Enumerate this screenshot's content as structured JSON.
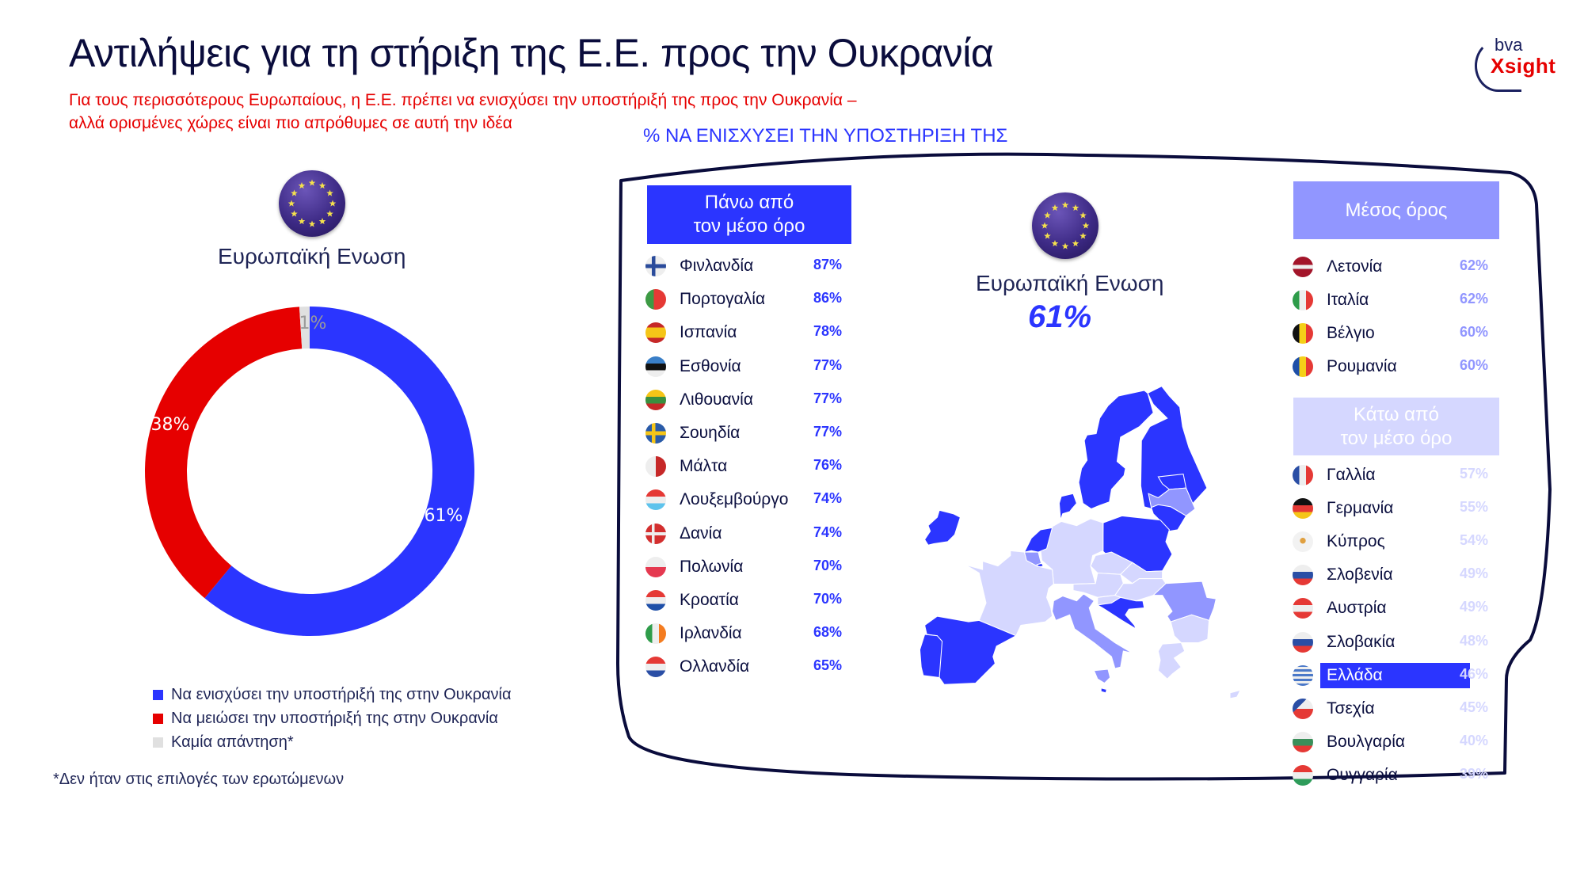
{
  "header": {
    "title": "Αντιλήψεις για τη στήριξη της Ε.Ε. προς την Ουκρανία",
    "subtitle_line1": "Για τους περισσότερους Ευρωπαίους, η Ε.Ε. πρέπει να ενισχύσει την υποστήριξή της προς την Ουκρανία –",
    "subtitle_line2": "αλλά ορισμένες χώρες είναι πιο απρόθυμες σε αυτή την ιδέα",
    "logo_top": "bva",
    "logo_bottom": "Xsight"
  },
  "left_panel": {
    "flag_icon": "eu-flag-icon",
    "label": "Ευρωπαϊκή Ενωση",
    "legend": [
      {
        "label": "Να ενισχύσει την υποστήριξή της στην Ουκρανία",
        "color": "#2b35ff"
      },
      {
        "label": "Να μειώσει την υποστήριξή της στην Ουκρανία",
        "color": "#e60000"
      },
      {
        "label": "Καμία απάντηση*",
        "color": "#e0e0e0"
      }
    ],
    "footnote": "*Δεν ήταν στις επιλογές των ερωτώμενων"
  },
  "chart_data": {
    "type": "pie",
    "subtype": "donut",
    "title": "Ευρωπαϊκή Ενωση",
    "categories": [
      "Να ενισχύσει την υποστήριξή της στην Ουκρανία",
      "Να μειώσει την υποστήριξή της στην Ουκρανία",
      "Καμία απάντηση*"
    ],
    "values": [
      61,
      38,
      1
    ],
    "labels": [
      "61%",
      "38%",
      "1%"
    ],
    "colors": [
      "#2b35ff",
      "#e60000",
      "#e0e0e0"
    ],
    "legend_position": "bottom",
    "country_ranking": {
      "title": "% ΝΑ ΕΝΙΣΧΥΣΕΙ ΤΗΝ ΥΠΟΣΤΗΡΙΞΗ ΤΗΣ",
      "eu_average": 61,
      "above_average": [
        {
          "country": "Φινλανδία",
          "value": 87
        },
        {
          "country": "Πορτογαλία",
          "value": 86
        },
        {
          "country": "Ισπανία",
          "value": 78
        },
        {
          "country": "Εσθονία",
          "value": 77
        },
        {
          "country": "Λιθουανία",
          "value": 77
        },
        {
          "country": "Σουηδία",
          "value": 77
        },
        {
          "country": "Μάλτα",
          "value": 76
        },
        {
          "country": "Λουξεμβούργο",
          "value": 74
        },
        {
          "country": "Δανία",
          "value": 74
        },
        {
          "country": "Πολωνία",
          "value": 70
        },
        {
          "country": "Κροατία",
          "value": 70
        },
        {
          "country": "Ιρλανδία",
          "value": 68
        },
        {
          "country": "Ολλανδία",
          "value": 65
        }
      ],
      "average": [
        {
          "country": "Λετονία",
          "value": 62
        },
        {
          "country": "Ιταλία",
          "value": 62
        },
        {
          "country": "Βέλγιο",
          "value": 60
        },
        {
          "country": "Ρουμανία",
          "value": 60
        }
      ],
      "below_average": [
        {
          "country": "Γαλλία",
          "value": 57
        },
        {
          "country": "Γερμανία",
          "value": 55
        },
        {
          "country": "Κύπρος",
          "value": 54
        },
        {
          "country": "Σλοβενία",
          "value": 49
        },
        {
          "country": "Αυστρία",
          "value": 49
        },
        {
          "country": "Σλοβακία",
          "value": 48
        },
        {
          "country": "Ελλάδα",
          "value": 46
        },
        {
          "country": "Τσεχία",
          "value": 45
        },
        {
          "country": "Βουλγαρία",
          "value": 40
        },
        {
          "country": "Ουγγαρία",
          "value": 39
        }
      ]
    }
  },
  "right_panel": {
    "header": "%  ΝΑ ΕΝΙΣΧΥΣΕΙ ΤΗΝ ΥΠΟΣΤΗΡΙΞΗ ΤΗΣ",
    "center_label": "Ευρωπαϊκή Ενωση",
    "center_value": "61%",
    "colors": {
      "above": "#2b35ff",
      "average": "#9196ff",
      "below": "#d5d7ff",
      "highlight": "#2b35ff"
    },
    "above": {
      "title_line1": "Πάνω από",
      "title_line2": "τον μέσο όρο",
      "rows": [
        {
          "name": "Φινλανδία",
          "value": "87%",
          "flag": "finland-flag-icon"
        },
        {
          "name": "Πορτογαλία",
          "value": "86%",
          "flag": "portugal-flag-icon"
        },
        {
          "name": "Ισπανία",
          "value": "78%",
          "flag": "spain-flag-icon"
        },
        {
          "name": "Εσθονία",
          "value": "77%",
          "flag": "estonia-flag-icon"
        },
        {
          "name": "Λιθουανία",
          "value": "77%",
          "flag": "lithuania-flag-icon"
        },
        {
          "name": "Σουηδία",
          "value": "77%",
          "flag": "sweden-flag-icon"
        },
        {
          "name": "Μάλτα",
          "value": "76%",
          "flag": "malta-flag-icon"
        },
        {
          "name": "Λουξεμβούργο",
          "value": "74%",
          "flag": "luxembourg-flag-icon"
        },
        {
          "name": "Δανία",
          "value": "74%",
          "flag": "denmark-flag-icon"
        },
        {
          "name": "Πολωνία",
          "value": "70%",
          "flag": "poland-flag-icon"
        },
        {
          "name": "Κροατία",
          "value": "70%",
          "flag": "croatia-flag-icon"
        },
        {
          "name": "Ιρλανδία",
          "value": "68%",
          "flag": "ireland-flag-icon"
        },
        {
          "name": "Ολλανδία",
          "value": "65%",
          "flag": "netherlands-flag-icon"
        }
      ]
    },
    "average": {
      "title": "Μέσος όρος",
      "rows": [
        {
          "name": "Λετονία",
          "value": "62%",
          "flag": "latvia-flag-icon"
        },
        {
          "name": "Ιταλία",
          "value": "62%",
          "flag": "italy-flag-icon"
        },
        {
          "name": "Βέλγιο",
          "value": "60%",
          "flag": "belgium-flag-icon"
        },
        {
          "name": "Ρουμανία",
          "value": "60%",
          "flag": "romania-flag-icon"
        }
      ]
    },
    "below": {
      "title_line1": "Κάτω από",
      "title_line2": "τον μέσο όρο",
      "rows": [
        {
          "name": "Γαλλία",
          "value": "57%",
          "flag": "france-flag-icon"
        },
        {
          "name": "Γερμανία",
          "value": "55%",
          "flag": "germany-flag-icon"
        },
        {
          "name": "Κύπρος",
          "value": "54%",
          "flag": "cyprus-flag-icon"
        },
        {
          "name": "Σλοβενία",
          "value": "49%",
          "flag": "slovenia-flag-icon"
        },
        {
          "name": "Αυστρία",
          "value": "49%",
          "flag": "austria-flag-icon"
        },
        {
          "name": "Σλοβακία",
          "value": "48%",
          "flag": "slovakia-flag-icon"
        },
        {
          "name": "Ελλάδα",
          "value": "46%",
          "flag": "greece-flag-icon",
          "highlighted": true
        },
        {
          "name": "Τσεχία",
          "value": "45%",
          "flag": "czechia-flag-icon"
        },
        {
          "name": "Βουλγαρία",
          "value": "40%",
          "flag": "bulgaria-flag-icon"
        },
        {
          "name": "Ουγγαρία",
          "value": "39%",
          "flag": "hungary-flag-icon"
        }
      ]
    }
  }
}
